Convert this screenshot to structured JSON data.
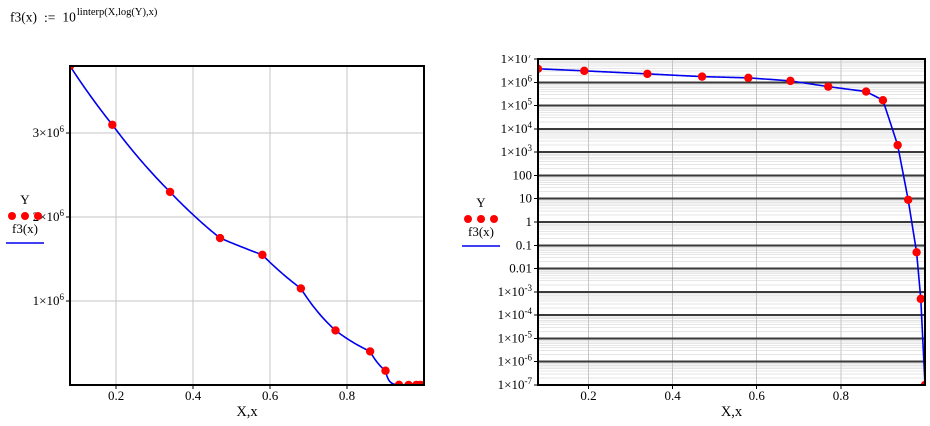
{
  "formula": {
    "lhs": "f3(x)",
    "assign": ":=",
    "base": "10",
    "exponent": "linterp(X,log(Y),x)"
  },
  "colors": {
    "curve": "#0000ee",
    "marker": "#ff0000",
    "grid_light": "#c6c6c6",
    "grid_minor": "#e6e6e6",
    "grid_dark": "#3a3a3a",
    "axis": "#000000",
    "text": "#000000"
  },
  "chart_data": [
    {
      "type": "line",
      "title": "",
      "xlabel": "X,x",
      "ylabel": "",
      "yscale": "linear",
      "grid": true,
      "legend_position": "left",
      "interpolation": "log-linear (curve is 10^linterp(X,log(Y),x))",
      "xlim": [
        0.08,
        1.0
      ],
      "ylim": [
        0,
        3800000
      ],
      "x": [
        0.08,
        0.19,
        0.34,
        0.47,
        0.58,
        0.68,
        0.77,
        0.86,
        0.9,
        0.935,
        0.96,
        0.98,
        0.99,
        1.0
      ],
      "y": [
        3800000,
        3100000,
        2300000,
        1750000,
        1550000,
        1150000,
        650000,
        400000,
        170000,
        2000,
        9,
        0.05,
        0.0005,
        1e-07
      ],
      "series": [
        {
          "name": "Y",
          "style": "points"
        },
        {
          "name": "f3(x)",
          "style": "line"
        }
      ],
      "xticks": [
        {
          "value": 0.2,
          "label": "0.2"
        },
        {
          "value": 0.4,
          "label": "0.4"
        },
        {
          "value": 0.6,
          "label": "0.6"
        },
        {
          "value": 0.8,
          "label": "0.8"
        }
      ],
      "yticks": [
        {
          "value": 1000000,
          "label": "1×10^6"
        },
        {
          "value": 2000000,
          "label": "2×10^6"
        },
        {
          "value": 3000000,
          "label": "3×10^6"
        }
      ],
      "legend": [
        {
          "label": "Y",
          "symbol": "red-dots"
        },
        {
          "label": "f3(x)",
          "symbol": "blue-line"
        }
      ]
    },
    {
      "type": "line",
      "title": "",
      "xlabel": "X,x",
      "ylabel": "",
      "yscale": "log",
      "grid": true,
      "legend_position": "left",
      "interpolation": "log-linear (curve is 10^linterp(X,log(Y),x))",
      "xlim": [
        0.08,
        1.0
      ],
      "ylim": [
        1e-07,
        10000000.0
      ],
      "x": [
        0.08,
        0.19,
        0.34,
        0.47,
        0.58,
        0.68,
        0.77,
        0.86,
        0.9,
        0.935,
        0.96,
        0.98,
        0.99,
        1.0
      ],
      "y": [
        3800000,
        3100000,
        2300000,
        1750000,
        1550000,
        1150000,
        650000,
        400000,
        170000,
        2000,
        9,
        0.05,
        0.0005,
        1e-07
      ],
      "series": [
        {
          "name": "Y",
          "style": "points"
        },
        {
          "name": "f3(x)",
          "style": "line"
        }
      ],
      "xticks": [
        {
          "value": 0.2,
          "label": "0.2"
        },
        {
          "value": 0.4,
          "label": "0.4"
        },
        {
          "value": 0.6,
          "label": "0.6"
        },
        {
          "value": 0.8,
          "label": "0.8"
        }
      ],
      "yticks": [
        {
          "value": 10000000.0,
          "label": "1×10^7"
        },
        {
          "value": 1000000.0,
          "label": "1×10^6"
        },
        {
          "value": 100000.0,
          "label": "1×10^5"
        },
        {
          "value": 10000.0,
          "label": "1×10^4"
        },
        {
          "value": 1000.0,
          "label": "1×10^3"
        },
        {
          "value": 100,
          "label": "100"
        },
        {
          "value": 10,
          "label": "10"
        },
        {
          "value": 1,
          "label": "1"
        },
        {
          "value": 0.1,
          "label": "0.1"
        },
        {
          "value": 0.01,
          "label": "0.01"
        },
        {
          "value": 0.001,
          "label": "1×10^-3"
        },
        {
          "value": 0.0001,
          "label": "1×10^-4"
        },
        {
          "value": 1e-05,
          "label": "1×10^-5"
        },
        {
          "value": 1e-06,
          "label": "1×10^-6"
        },
        {
          "value": 1e-07,
          "label": "1×10^-7"
        }
      ],
      "legend": [
        {
          "label": "Y",
          "symbol": "red-dots"
        },
        {
          "label": "f3(x)",
          "symbol": "blue-line"
        }
      ]
    }
  ]
}
